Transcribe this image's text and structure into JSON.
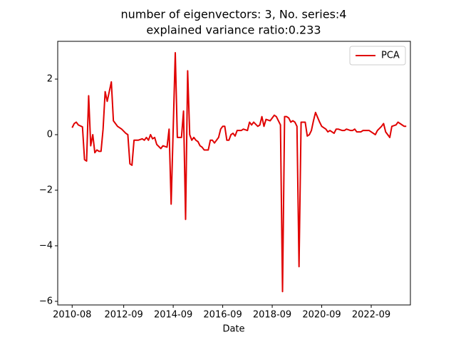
{
  "chart_data": {
    "type": "line",
    "title": [
      "number of eigenvectors: 3, No. series:4",
      "explained variance ratio:0.233"
    ],
    "xlabel": "Date",
    "x": [
      "2010-08",
      "2010-09",
      "2010-10",
      "2010-11",
      "2011-01",
      "2011-02",
      "2011-03",
      "2011-04",
      "2011-05",
      "2011-06",
      "2011-07",
      "2011-08",
      "2011-09",
      "2011-10",
      "2011-11",
      "2011-12",
      "2012-01",
      "2012-03",
      "2012-04",
      "2012-06",
      "2012-08",
      "2012-10",
      "2012-11",
      "2012-12",
      "2013-01",
      "2013-02",
      "2013-04",
      "2013-06",
      "2013-07",
      "2013-08",
      "2013-09",
      "2013-10",
      "2013-11",
      "2013-12",
      "2014-01",
      "2014-03",
      "2014-04",
      "2014-06",
      "2014-07",
      "2014-08",
      "2014-10",
      "2014-11",
      "2015-01",
      "2015-02",
      "2015-03",
      "2015-04",
      "2015-05",
      "2015-06",
      "2015-07",
      "2015-08",
      "2015-09",
      "2015-10",
      "2015-11",
      "2015-12",
      "2016-02",
      "2016-03",
      "2016-04",
      "2016-05",
      "2016-07",
      "2016-08",
      "2016-09",
      "2016-10",
      "2016-11",
      "2016-12",
      "2017-01",
      "2017-02",
      "2017-03",
      "2017-04",
      "2017-06",
      "2017-07",
      "2017-09",
      "2017-10",
      "2017-11",
      "2017-12",
      "2018-02",
      "2018-03",
      "2018-04",
      "2018-05",
      "2018-06",
      "2018-08",
      "2018-09",
      "2018-10",
      "2018-11",
      "2019-01",
      "2019-02",
      "2019-03",
      "2019-04",
      "2019-05",
      "2019-06",
      "2019-07",
      "2019-08",
      "2019-09",
      "2019-10",
      "2019-11",
      "2019-12",
      "2020-01",
      "2020-02",
      "2020-03",
      "2020-04",
      "2020-05",
      "2020-06",
      "2020-08",
      "2020-09",
      "2020-11",
      "2020-12",
      "2021-01",
      "2021-03",
      "2021-04",
      "2021-05",
      "2021-07",
      "2021-08",
      "2021-09",
      "2021-11",
      "2021-12",
      "2022-01",
      "2022-02",
      "2022-04",
      "2022-05",
      "2022-06",
      "2022-08",
      "2022-10",
      "2022-11",
      "2022-12",
      "2023-02",
      "2023-03",
      "2023-04",
      "2023-06",
      "2023-07",
      "2023-09",
      "2023-10",
      "2023-12",
      "2024-01",
      "2024-02"
    ],
    "series": [
      {
        "name": "PCA",
        "color": "#e00000",
        "values": [
          0.25,
          0.4,
          0.45,
          0.35,
          0.28,
          -0.9,
          -0.95,
          1.4,
          -0.4,
          0,
          -0.65,
          -0.55,
          -0.6,
          -0.6,
          0.2,
          1.55,
          1.2,
          1.9,
          0.5,
          0.3,
          0.2,
          0.05,
          0,
          -1.05,
          -1.1,
          -0.2,
          -0.2,
          -0.15,
          -0.2,
          -0.1,
          -0.2,
          0,
          -0.15,
          -0.1,
          -0.35,
          -0.5,
          -0.4,
          -0.45,
          0.2,
          -2.5,
          2.95,
          -0.1,
          -0.1,
          0.85,
          -3.05,
          2.3,
          0,
          -0.2,
          -0.1,
          -0.2,
          -0.25,
          -0.4,
          -0.45,
          -0.55,
          -0.55,
          -0.2,
          -0.2,
          -0.3,
          -0.1,
          0.2,
          0.3,
          0.3,
          -0.2,
          -0.2,
          0,
          0.05,
          -0.05,
          0.15,
          0.15,
          0.2,
          0.15,
          0.45,
          0.35,
          0.45,
          0.3,
          0.35,
          0.65,
          0.3,
          0.55,
          0.5,
          0.6,
          0.7,
          0.65,
          0.35,
          -5.65,
          0.65,
          0.65,
          0.6,
          0.45,
          0.5,
          0.45,
          0.3,
          -4.75,
          0.45,
          0.45,
          0.45,
          -0.05,
          0,
          0.15,
          0.5,
          0.8,
          0.45,
          0.3,
          0.2,
          0.1,
          0.15,
          0.05,
          0.2,
          0.2,
          0.15,
          0.15,
          0.2,
          0.15,
          0.15,
          0.2,
          0.1,
          0.1,
          0.15,
          0.15,
          0.15,
          0.05,
          0,
          0.15,
          0.3,
          0.4,
          0.1,
          -0.1,
          0.3,
          0.35,
          0.45,
          0.35,
          0.3,
          0.3
        ]
      }
    ],
    "xlim": [
      "2010-01",
      "2024-04"
    ],
    "xticks": [
      "2010-08",
      "2012-09",
      "2014-09",
      "2016-09",
      "2018-09",
      "2020-09",
      "2022-09"
    ],
    "ylim": [
      -6.13,
      3.36
    ],
    "yticks": [
      {
        "value": -6,
        "label": "−6"
      },
      {
        "value": -4,
        "label": "−4"
      },
      {
        "value": -2,
        "label": "−2"
      },
      0,
      2
    ],
    "legend": "upper right"
  }
}
